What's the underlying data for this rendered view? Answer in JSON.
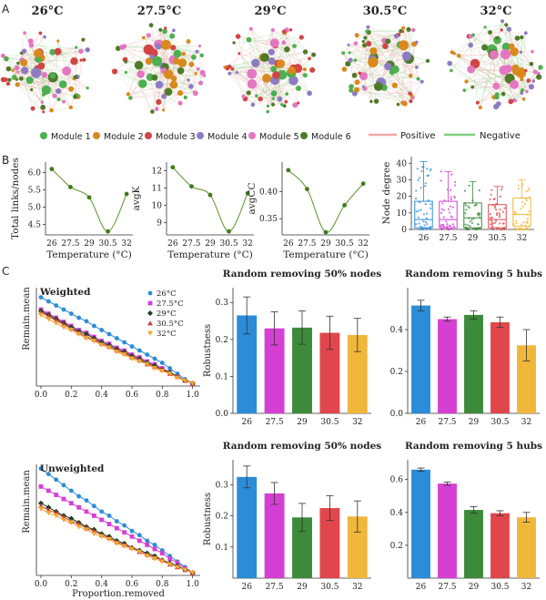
{
  "panel_labels": {
    "a": "A",
    "b": "B",
    "c": "C"
  },
  "networks": {
    "titles": [
      "26°C",
      "27.5°C",
      "29°C",
      "30.5°C",
      "32°C"
    ],
    "module_legend": [
      {
        "label": "Module 1",
        "color": "#4caf50"
      },
      {
        "label": "Module 2",
        "color": "#d9891d"
      },
      {
        "label": "Module 3",
        "color": "#d24545"
      },
      {
        "label": "Module 4",
        "color": "#8e7cc3"
      },
      {
        "label": "Module 5",
        "color": "#e377c2"
      },
      {
        "label": "Module 6",
        "color": "#4f7a28"
      }
    ],
    "edge_legend": [
      {
        "label": "Positive",
        "color": "#f2a7a7"
      },
      {
        "label": "Negative",
        "color": "#7fd17f"
      }
    ]
  },
  "chart_data": [
    {
      "type": "line",
      "x": [
        26,
        27.5,
        29,
        30.5,
        32
      ],
      "values": [
        6.1,
        5.58,
        5.28,
        4.3,
        5.38
      ],
      "xlabel": "Temperature (°C)",
      "ylabel": "Total links/nodes",
      "ylim": [
        4.2,
        6.3
      ],
      "yticks": [
        4.5,
        5.0,
        5.5,
        6.0
      ],
      "ytick_labels": [
        "4.5",
        "5.0",
        "5.5",
        "6.0"
      ],
      "xtick_labels": [
        "26",
        "27.5",
        "29",
        "30.5",
        "32"
      ],
      "color": "#3f7a1e"
    },
    {
      "type": "line",
      "x": [
        26,
        27.5,
        29,
        30.5,
        32
      ],
      "values": [
        12.2,
        11.1,
        10.6,
        8.5,
        10.7
      ],
      "xlabel": "Temperature (°C)",
      "ylabel": "avgK",
      "ylim": [
        8.3,
        12.5
      ],
      "yticks": [
        9,
        10,
        11,
        12
      ],
      "ytick_labels": [
        "9",
        "10",
        "11",
        "12"
      ],
      "xtick_labels": [
        "26",
        "27.5",
        "29",
        "30.5",
        "32"
      ],
      "color": "#3f7a1e"
    },
    {
      "type": "line",
      "x": [
        26,
        27.5,
        29,
        30.5,
        32
      ],
      "values": [
        0.44,
        0.405,
        0.325,
        0.375,
        0.415
      ],
      "xlabel": "Temperature (°C)",
      "ylabel": "avgCC",
      "ylim": [
        0.32,
        0.455
      ],
      "yticks": [
        0.35,
        0.4
      ],
      "ytick_labels": [
        "0.35",
        "0.40"
      ],
      "xtick_labels": [
        "26",
        "27.5",
        "29",
        "30.5",
        "32"
      ],
      "color": "#3f7a1e"
    },
    {
      "type": "box",
      "categories": [
        "26",
        "27.5",
        "29",
        "30.5",
        "32"
      ],
      "colors": [
        "#2b8cd8",
        "#d63fd3",
        "#3c8a3a",
        "#e0474c",
        "#f0b73a"
      ],
      "boxes": [
        {
          "min": 0,
          "q1": 1,
          "median": 6,
          "q3": 17,
          "max": 41
        },
        {
          "min": 0,
          "q1": 1,
          "median": 6,
          "q3": 17,
          "max": 35
        },
        {
          "min": 0,
          "q1": 1,
          "median": 7,
          "q3": 16,
          "max": 29
        },
        {
          "min": 0,
          "q1": 1,
          "median": 6,
          "q3": 15,
          "max": 26
        },
        {
          "min": 0,
          "q1": 2,
          "median": 9,
          "q3": 19,
          "max": 30
        }
      ],
      "ylabel": "Node degree",
      "ylim": [
        0,
        44
      ],
      "yticks": [
        0,
        10,
        20,
        30,
        40
      ],
      "ytick_labels": [
        "0",
        "10",
        "20",
        "30",
        "40"
      ]
    },
    {
      "type": "line",
      "title": "Weighted",
      "ylabel": "Remain.mean",
      "xlabel": "",
      "x": [
        0,
        0.05,
        0.1,
        0.15,
        0.2,
        0.25,
        0.3,
        0.35,
        0.4,
        0.45,
        0.5,
        0.55,
        0.6,
        0.65,
        0.7,
        0.75,
        0.8,
        0.85,
        0.9,
        0.95,
        1.0
      ],
      "xlim": [
        -0.03,
        1.05
      ],
      "ylim": [
        -0.02,
        0.7
      ],
      "xticks": [
        0,
        0.2,
        0.4,
        0.6,
        0.8,
        1.0
      ],
      "xtick_labels": [
        "0.0",
        "0.2",
        "0.4",
        "0.6",
        "0.8",
        "1.0"
      ],
      "series": [
        {
          "name": "26°C",
          "color": "#2b8cd8",
          "marker": "circle",
          "values": [
            0.63,
            0.6,
            0.57,
            0.54,
            0.51,
            0.48,
            0.455,
            0.42,
            0.39,
            0.36,
            0.33,
            0.3,
            0.27,
            0.24,
            0.21,
            0.18,
            0.15,
            0.11,
            0.07,
            0.03,
            0.0
          ]
        },
        {
          "name": "27.5°C",
          "color": "#d63fd3",
          "marker": "square",
          "values": [
            0.54,
            0.51,
            0.48,
            0.45,
            0.42,
            0.39,
            0.37,
            0.34,
            0.31,
            0.29,
            0.26,
            0.24,
            0.21,
            0.19,
            0.16,
            0.14,
            0.11,
            0.08,
            0.05,
            0.02,
            0.0
          ]
        },
        {
          "name": "29°C",
          "color": "#1f3f1f",
          "marker": "diamond",
          "values": [
            0.53,
            0.5,
            0.47,
            0.44,
            0.41,
            0.38,
            0.36,
            0.33,
            0.3,
            0.28,
            0.25,
            0.23,
            0.2,
            0.18,
            0.15,
            0.13,
            0.1,
            0.08,
            0.05,
            0.02,
            0.0
          ]
        },
        {
          "name": "30.5°C",
          "color": "#d23a3a",
          "marker": "triangle",
          "values": [
            0.52,
            0.49,
            0.46,
            0.43,
            0.4,
            0.37,
            0.34,
            0.32,
            0.29,
            0.27,
            0.24,
            0.22,
            0.19,
            0.17,
            0.14,
            0.12,
            0.1,
            0.07,
            0.05,
            0.02,
            0.0
          ]
        },
        {
          "name": "32°C",
          "color": "#f0a732",
          "marker": "triangle-down",
          "values": [
            0.5,
            0.47,
            0.44,
            0.41,
            0.39,
            0.36,
            0.33,
            0.31,
            0.28,
            0.26,
            0.23,
            0.21,
            0.18,
            0.16,
            0.14,
            0.11,
            0.09,
            0.07,
            0.04,
            0.02,
            0.0
          ]
        }
      ],
      "legend": "top-right"
    },
    {
      "type": "bar",
      "title": "Random removing 50% nodes",
      "ylabel": "Robustness",
      "categories": [
        "26",
        "27.5",
        "29",
        "30.5",
        "32"
      ],
      "values": [
        0.265,
        0.23,
        0.232,
        0.218,
        0.212
      ],
      "errors": [
        0.05,
        0.045,
        0.045,
        0.045,
        0.045
      ],
      "colors": [
        "#2b8cd8",
        "#d63fd3",
        "#3c8a3a",
        "#e0474c",
        "#f0b73a"
      ],
      "ylim": [
        0,
        0.34
      ],
      "yticks": [
        0,
        0.1,
        0.2,
        0.3
      ],
      "ytick_labels": [
        "0.0",
        "0.1",
        "0.2",
        "0.3"
      ]
    },
    {
      "type": "bar",
      "title": "Random removing 5 hubs",
      "ylabel": "",
      "categories": [
        "26",
        "27.5",
        "29",
        "30.5",
        "32"
      ],
      "values": [
        0.515,
        0.45,
        0.47,
        0.435,
        0.325
      ],
      "errors": [
        0.025,
        0.01,
        0.02,
        0.025,
        0.075
      ],
      "colors": [
        "#2b8cd8",
        "#d63fd3",
        "#3c8a3a",
        "#e0474c",
        "#f0b73a"
      ],
      "ylim": [
        0,
        0.6
      ],
      "yticks": [
        0,
        0.2,
        0.4
      ],
      "ytick_labels": [
        "0.0",
        "0.2",
        "0.4"
      ]
    },
    {
      "type": "line",
      "title": "Unweighted",
      "ylabel": "Remain.mean",
      "xlabel": "Proportion.removed",
      "x": [
        0,
        0.05,
        0.1,
        0.15,
        0.2,
        0.25,
        0.3,
        0.35,
        0.4,
        0.45,
        0.5,
        0.55,
        0.6,
        0.65,
        0.7,
        0.75,
        0.8,
        0.85,
        0.9,
        0.95,
        1.0
      ],
      "xlim": [
        -0.03,
        1.05
      ],
      "ylim": [
        -0.02,
        0.78
      ],
      "xticks": [
        0,
        0.2,
        0.4,
        0.6,
        0.8,
        1.0
      ],
      "xtick_labels": [
        "0.0",
        "0.2",
        "0.4",
        "0.6",
        "0.8",
        "1.0"
      ],
      "series": [
        {
          "name": "26°C",
          "color": "#2b8cd8",
          "marker": "circle",
          "values": [
            0.75,
            0.71,
            0.67,
            0.63,
            0.59,
            0.55,
            0.52,
            0.48,
            0.44,
            0.41,
            0.37,
            0.34,
            0.3,
            0.27,
            0.23,
            0.2,
            0.16,
            0.12,
            0.08,
            0.04,
            0.0
          ]
        },
        {
          "name": "27.5°C",
          "color": "#d63fd3",
          "marker": "square",
          "values": [
            0.62,
            0.59,
            0.56,
            0.53,
            0.5,
            0.47,
            0.44,
            0.41,
            0.38,
            0.35,
            0.32,
            0.29,
            0.26,
            0.23,
            0.2,
            0.17,
            0.14,
            0.1,
            0.07,
            0.03,
            0.0
          ]
        },
        {
          "name": "29°C",
          "color": "#1f3f1f",
          "marker": "diamond",
          "values": [
            0.5,
            0.47,
            0.44,
            0.41,
            0.39,
            0.36,
            0.33,
            0.31,
            0.28,
            0.26,
            0.23,
            0.21,
            0.18,
            0.16,
            0.14,
            0.12,
            0.09,
            0.07,
            0.05,
            0.02,
            0.0
          ]
        },
        {
          "name": "30.5°C",
          "color": "#d23a3a",
          "marker": "triangle",
          "values": [
            0.48,
            0.45,
            0.43,
            0.4,
            0.37,
            0.35,
            0.32,
            0.3,
            0.27,
            0.25,
            0.22,
            0.2,
            0.18,
            0.15,
            0.13,
            0.11,
            0.09,
            0.06,
            0.04,
            0.02,
            0.0
          ]
        },
        {
          "name": "32°C",
          "color": "#f0a732",
          "marker": "triangle-down",
          "values": [
            0.46,
            0.43,
            0.41,
            0.38,
            0.36,
            0.33,
            0.31,
            0.28,
            0.26,
            0.24,
            0.21,
            0.19,
            0.17,
            0.15,
            0.12,
            0.1,
            0.08,
            0.06,
            0.04,
            0.02,
            0.0
          ]
        }
      ]
    },
    {
      "type": "bar",
      "title": "Random removing 50% nodes",
      "ylabel": "Robustness",
      "categories": [
        "26",
        "27.5",
        "29",
        "30.5",
        "32"
      ],
      "values": [
        0.325,
        0.272,
        0.195,
        0.225,
        0.198
      ],
      "errors": [
        0.035,
        0.035,
        0.045,
        0.04,
        0.05
      ],
      "colors": [
        "#2b8cd8",
        "#d63fd3",
        "#3c8a3a",
        "#e0474c",
        "#f0b73a"
      ],
      "ylim": [
        0,
        0.38
      ],
      "yticks": [
        0.1,
        0.2,
        0.3
      ],
      "ytick_labels": [
        "0.1",
        "0.2",
        "0.3"
      ]
    },
    {
      "type": "bar",
      "title": "Random removing 5 hubs",
      "ylabel": "",
      "categories": [
        "26",
        "27.5",
        "29",
        "30.5",
        "32"
      ],
      "values": [
        0.66,
        0.575,
        0.415,
        0.395,
        0.37
      ],
      "errors": [
        0.01,
        0.01,
        0.02,
        0.015,
        0.03
      ],
      "colors": [
        "#2b8cd8",
        "#d63fd3",
        "#3c8a3a",
        "#e0474c",
        "#f0b73a"
      ],
      "ylim": [
        0,
        0.72
      ],
      "yticks": [
        0.2,
        0.4,
        0.6
      ],
      "ytick_labels": [
        "0.2",
        "0.4",
        "0.6"
      ]
    }
  ]
}
